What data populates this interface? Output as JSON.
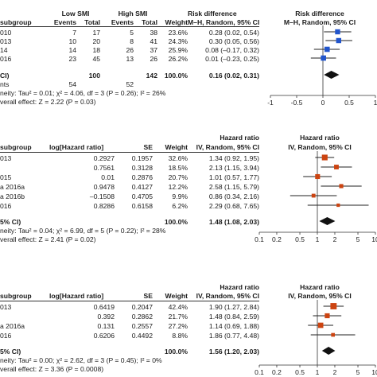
{
  "chart_data": [
    {
      "type": "forest",
      "header": {
        "group_low": "Low SMI",
        "group_high": "High SMI",
        "subgroup": "subgroup",
        "events": "Events",
        "total": "Total",
        "weight": "Weight",
        "effect": "Risk difference",
        "method": "M–H, Random, 95% CI",
        "plot_effect": "Risk difference",
        "plot_method": "M–H, Random, 95% CI"
      },
      "rows": [
        {
          "label": "010",
          "e1": "7",
          "n1": "17",
          "e2": "5",
          "n2": "38",
          "weight": "23.6%",
          "ci_text": "0.28 (0.02, 0.54)",
          "est": 0.28,
          "lo": 0.02,
          "hi": 0.54
        },
        {
          "label": "013",
          "e1": "10",
          "n1": "20",
          "e2": "8",
          "n2": "41",
          "weight": "24.3%",
          "ci_text": "0.30 (0.05, 0.56)",
          "est": 0.3,
          "lo": 0.05,
          "hi": 0.56
        },
        {
          "label": "14",
          "e1": "14",
          "n1": "18",
          "e2": "26",
          "n2": "37",
          "weight": "25.9%",
          "ci_text": "0.08 (–0.17, 0.32)",
          "est": 0.08,
          "lo": -0.17,
          "hi": 0.32
        },
        {
          "label": "016",
          "e1": "23",
          "n1": "45",
          "e2": "13",
          "n2": "26",
          "weight": "26.2%",
          "ci_text": "0.01 (–0.23, 0.25)",
          "est": 0.01,
          "lo": -0.23,
          "hi": 0.25
        }
      ],
      "total": {
        "label": "CI)",
        "n1": "100",
        "n2": "142",
        "weight": "100.0%",
        "ci_text": "0.16 (0.02, 0.31)",
        "est": 0.16,
        "lo": 0.02,
        "hi": 0.31
      },
      "total_events": {
        "label": "nts",
        "e1": "54",
        "e2": "52"
      },
      "heterogeneity": "neity: Tau² = 0.01; χ² = 4.06, df = 3 (P = 0.26); I² = 26%",
      "overall_effect": "verall effect: Z = 2.22 (P = 0.03)",
      "axis": {
        "min": -1,
        "max": 1,
        "ticks": [
          -1,
          -0.5,
          0,
          0.5,
          1
        ],
        "tick_labels": [
          "-1",
          "-0.5",
          "0",
          "0.5",
          "1"
        ],
        "scale": "linear",
        "null_value": 0
      },
      "marker_color": "#2255cc"
    },
    {
      "type": "forest",
      "header": {
        "subgroup": "subgroup",
        "loghr": "log[Hazard ratio]",
        "se": "SE",
        "weight": "Weight",
        "effect": "Hazard ratio",
        "method": "IV, Random, 95% CI",
        "plot_effect": "Hazard ratio",
        "plot_method": "IV, Random, 95% CI"
      },
      "rows": [
        {
          "label": "013",
          "loghr": "0.2927",
          "se": "0.1957",
          "weight": "32.6%",
          "ci_text": "1.34 (0.92, 1.95)",
          "est": 1.34,
          "lo": 0.92,
          "hi": 1.95
        },
        {
          "label": "",
          "loghr": "0.7561",
          "se": "0.3128",
          "weight": "18.5%",
          "ci_text": "2.13 (1.15, 3.94)",
          "est": 2.13,
          "lo": 1.15,
          "hi": 3.94
        },
        {
          "label": "015",
          "loghr": "0.01",
          "se": "0.2876",
          "weight": "20.7%",
          "ci_text": "1.01 (0.57, 1.77)",
          "est": 1.01,
          "lo": 0.57,
          "hi": 1.77
        },
        {
          "label": "a 2016a",
          "loghr": "0.9478",
          "se": "0.4127",
          "weight": "12.2%",
          "ci_text": "2.58 (1.15, 5.79)",
          "est": 2.58,
          "lo": 1.15,
          "hi": 5.79
        },
        {
          "label": "a 2016b",
          "loghr": "–0.1508",
          "se": "0.4705",
          "weight": "9.9%",
          "ci_text": "0.86 (0.34, 2.16)",
          "est": 0.86,
          "lo": 0.34,
          "hi": 2.16
        },
        {
          "label": "016",
          "loghr": "0.8286",
          "se": "0.6158",
          "weight": "6.2%",
          "ci_text": "2.29 (0.68, 7.65)",
          "est": 2.29,
          "lo": 0.68,
          "hi": 7.65
        }
      ],
      "total": {
        "label": "5% CI)",
        "weight": "100.0%",
        "ci_text": "1.48 (1.08, 2.03)",
        "est": 1.48,
        "lo": 1.08,
        "hi": 2.03
      },
      "heterogeneity": "neity: Tau² = 0.04; χ² = 6.99, df = 5 (P = 0.22); I² = 28%",
      "overall_effect": "verall effect: Z = 2.41 (P = 0.02)",
      "axis": {
        "min": 0.1,
        "max": 10,
        "ticks": [
          0.1,
          0.2,
          0.5,
          1,
          2,
          5,
          10
        ],
        "tick_labels": [
          "0.1",
          "0.2",
          "0.5",
          "1",
          "2",
          "5",
          "10"
        ],
        "scale": "log",
        "null_value": 1
      },
      "marker_color": "#cc4411"
    },
    {
      "type": "forest",
      "header": {
        "subgroup": "subgroup",
        "loghr": "log[Hazard ratio]",
        "se": "SE",
        "weight": "Weight",
        "effect": "Hazard ratio",
        "method": "IV, Random, 95% CI",
        "plot_effect": "Hazard ratio",
        "plot_method": "IV, Random, 95% CI"
      },
      "rows": [
        {
          "label": "013",
          "loghr": "0.6419",
          "se": "0.2047",
          "weight": "42.4%",
          "ci_text": "1.90 (1.27, 2.84)",
          "est": 1.9,
          "lo": 1.27,
          "hi": 2.84
        },
        {
          "label": "",
          "loghr": "0.392",
          "se": "0.2862",
          "weight": "21.7%",
          "ci_text": "1.48 (0.84, 2.59)",
          "est": 1.48,
          "lo": 0.84,
          "hi": 2.59
        },
        {
          "label": "a 2016a",
          "loghr": "0.131",
          "se": "0.2557",
          "weight": "27.2%",
          "ci_text": "1.14 (0.69, 1.88)",
          "est": 1.14,
          "lo": 0.69,
          "hi": 1.88
        },
        {
          "label": "016",
          "loghr": "0.6206",
          "se": "0.4492",
          "weight": "8.8%",
          "ci_text": "1.86 (0.77, 4.48)",
          "est": 1.86,
          "lo": 0.77,
          "hi": 4.48
        }
      ],
      "total": {
        "label": "5% CI)",
        "weight": "100.0%",
        "ci_text": "1.56 (1.20, 2.03)",
        "est": 1.56,
        "lo": 1.2,
        "hi": 2.03
      },
      "heterogeneity": "neity: Tau² = 0.00; χ² = 2.62, df = 3 (P = 0.45); I² = 0%",
      "overall_effect": "verall effect: Z = 3.36 (P = 0.0008)",
      "axis": {
        "min": 0.1,
        "max": 10,
        "ticks": [
          0.1,
          0.2,
          0.5,
          1,
          2,
          5,
          10
        ],
        "tick_labels": [
          "0.1",
          "0.2",
          "0.5",
          "1",
          "2",
          "5",
          "10"
        ],
        "scale": "log",
        "null_value": 1
      },
      "marker_color": "#cc4411"
    }
  ]
}
